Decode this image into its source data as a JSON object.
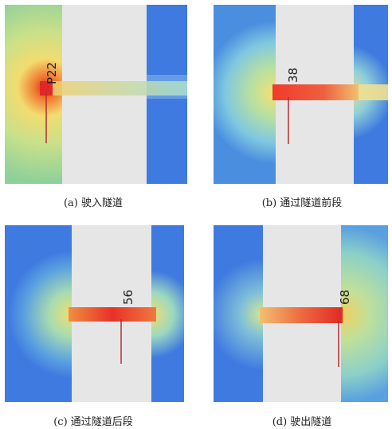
{
  "panels": [
    {
      "id": "a",
      "marker": "P22",
      "caption": "(a) 驶入隧道"
    },
    {
      "id": "b",
      "marker": "38",
      "caption": "(b) 通过隧道前段"
    },
    {
      "id": "c",
      "marker": "56",
      "caption": "(c) 通过隧道后段"
    },
    {
      "id": "d",
      "marker": "68",
      "caption": "(d) 驶出隧道"
    }
  ],
  "colors": {
    "tunnel": "#e6e6e6",
    "field_far": "#3f7ae0",
    "field_mid": "#8fd6c8",
    "field_near": "#f0e870",
    "hot": "#e0302a",
    "pole": "#b03030"
  }
}
